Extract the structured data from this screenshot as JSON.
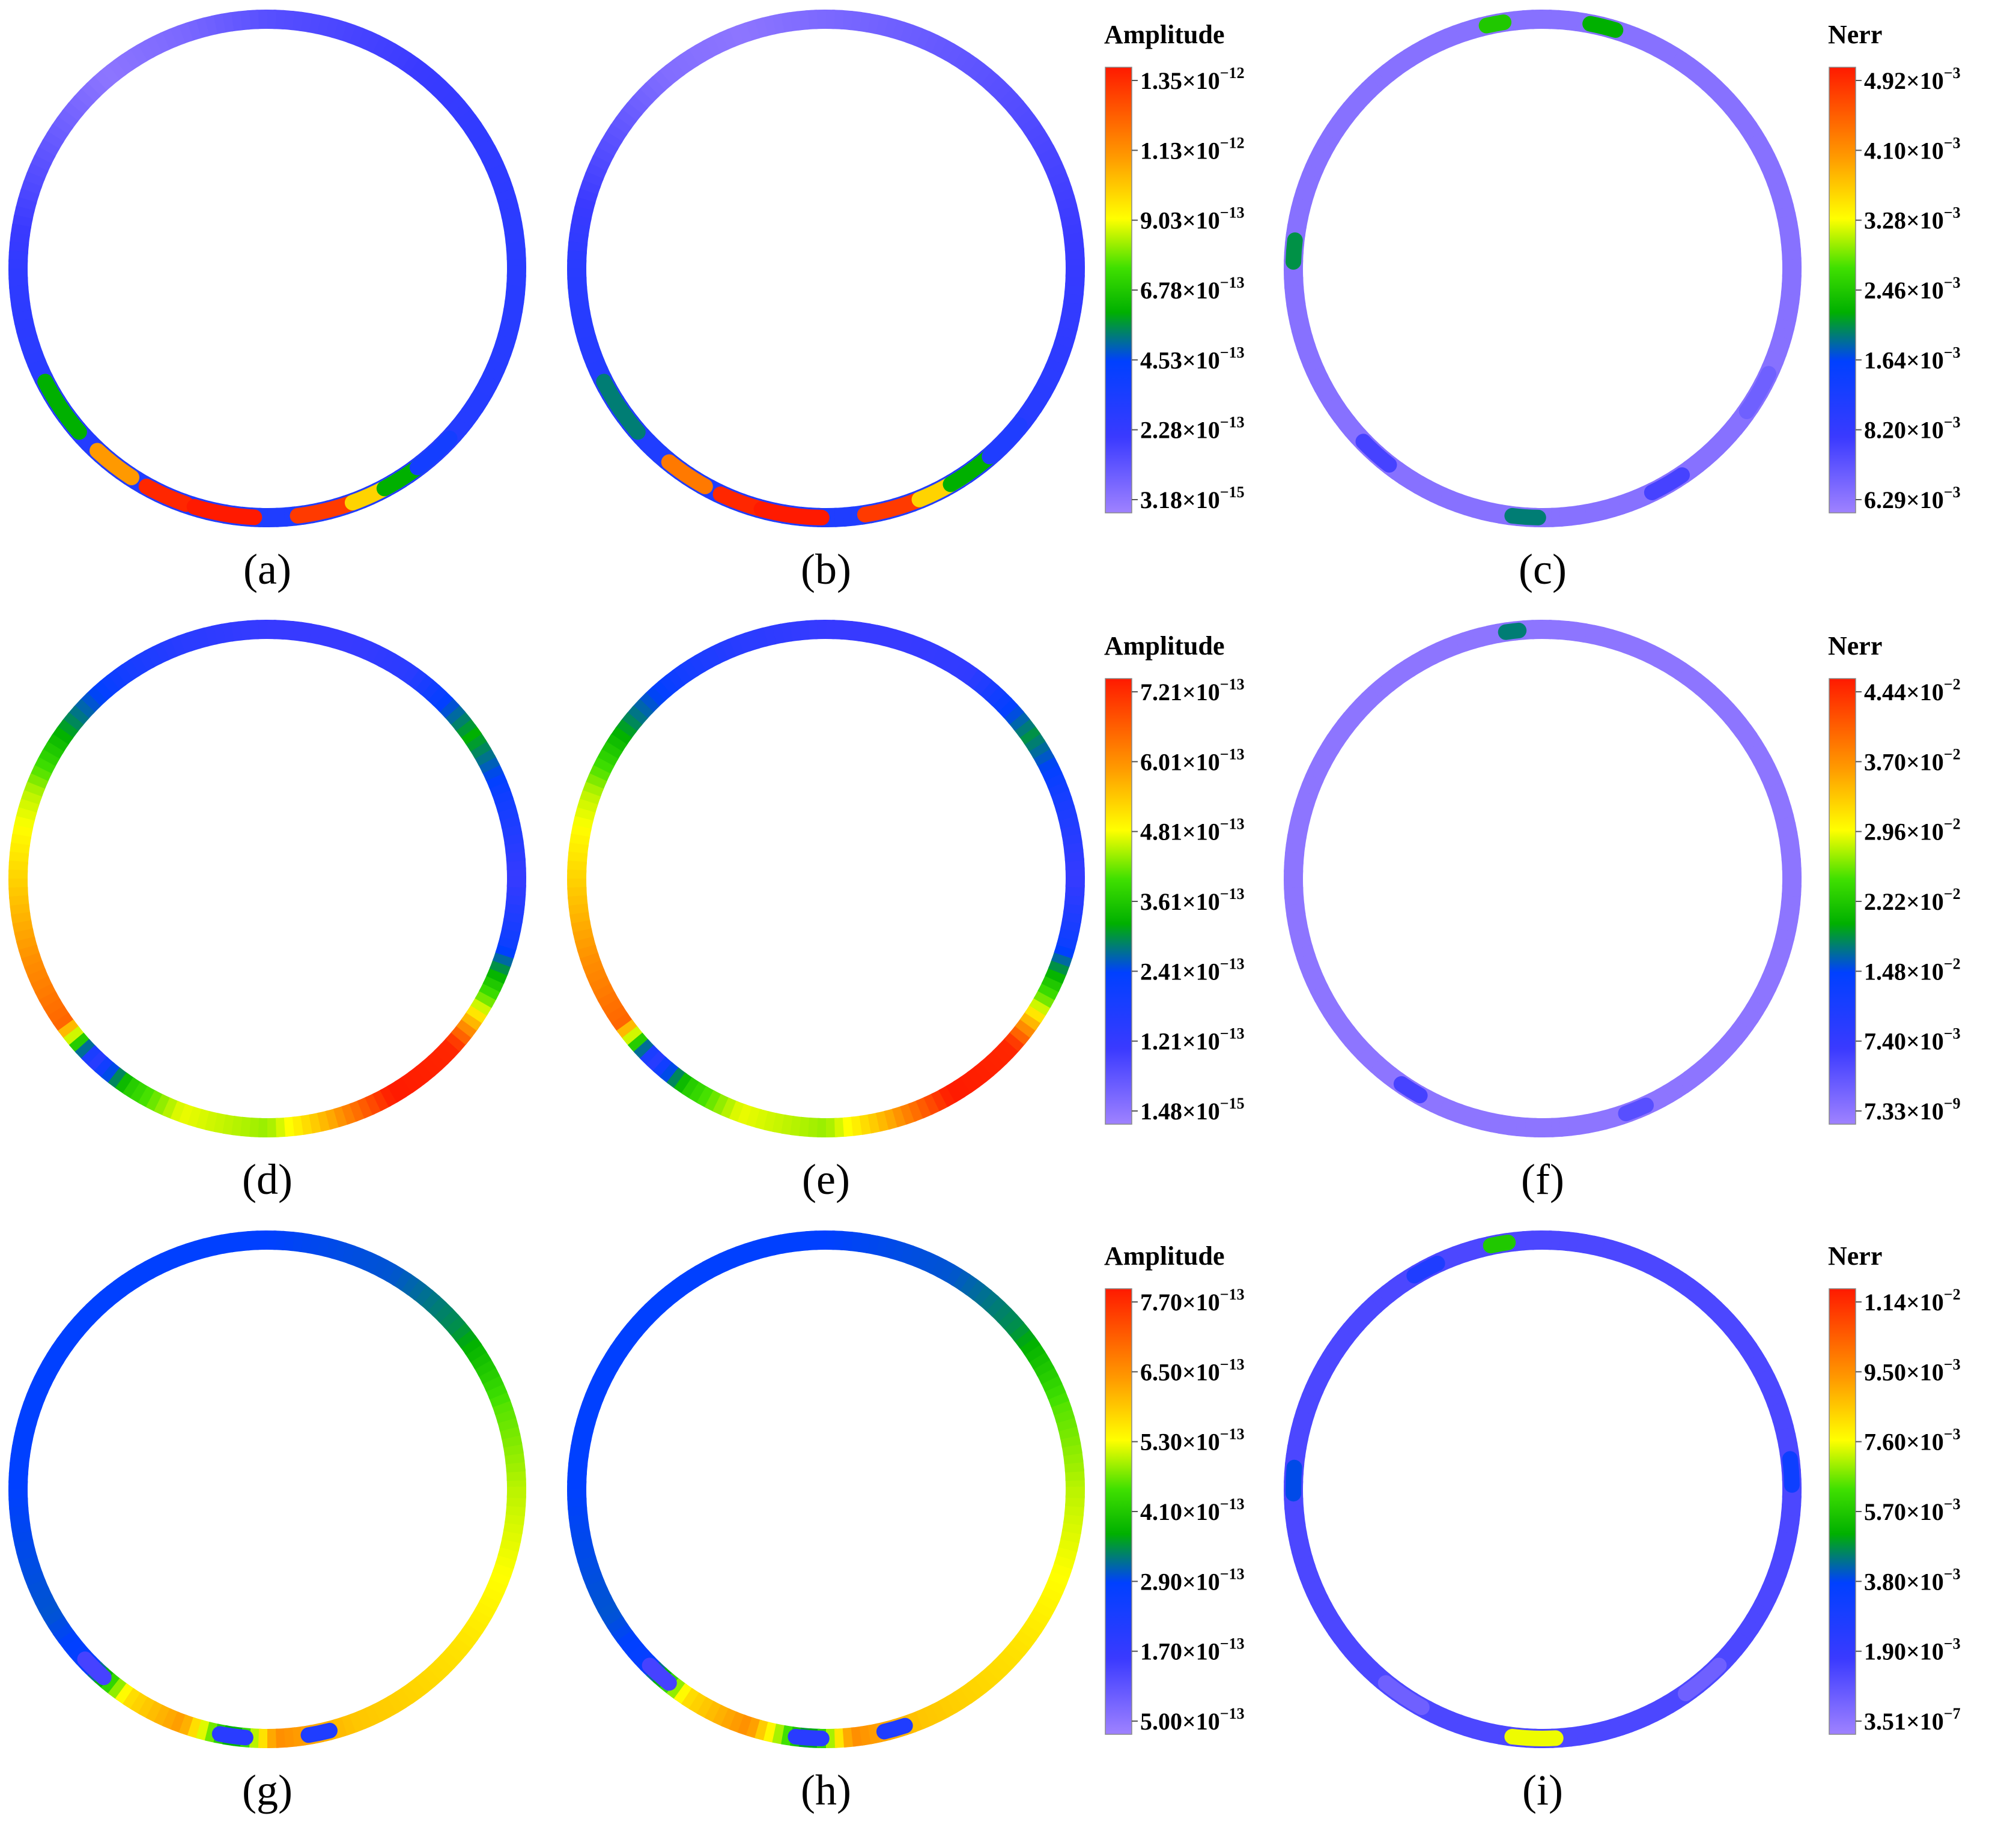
{
  "rows": [
    {
      "panels": [
        {
          "label": "(a)",
          "kind": "amplitude",
          "segments": [
            [
              0,
              0.22
            ],
            [
              30,
              0.2
            ],
            [
              60,
              0.16
            ],
            [
              90,
              0.12
            ],
            [
              110,
              0.06
            ],
            [
              130,
              0.03
            ],
            [
              180,
              0.2
            ],
            [
              230,
              0.24
            ],
            [
              270,
              0.25
            ],
            [
              300,
              0.24
            ],
            [
              330,
              0.23
            ],
            [
              360,
              0.22
            ]
          ],
          "spots": [
            [
              214,
              0.45,
              14
            ],
            [
              232,
              0.8,
              10
            ],
            [
              246,
              0.98,
              10
            ],
            [
              260,
              1.0,
              14
            ],
            [
              284,
              0.95,
              14
            ],
            [
              296,
              0.72,
              12
            ],
            [
              304,
              0.45,
              12
            ],
            [
              312,
              0.28,
              10
            ]
          ]
        },
        {
          "label": "(b)",
          "kind": "amplitude",
          "segments": [
            [
              0,
              0.18
            ],
            [
              30,
              0.14
            ],
            [
              60,
              0.1
            ],
            [
              90,
              0.06
            ],
            [
              110,
              0.03
            ],
            [
              130,
              0.05
            ],
            [
              180,
              0.22
            ],
            [
              230,
              0.25
            ],
            [
              270,
              0.25
            ],
            [
              300,
              0.24
            ],
            [
              330,
              0.22
            ],
            [
              360,
              0.18
            ]
          ],
          "spots": [
            [
              214,
              0.4,
              14
            ],
            [
              236,
              0.85,
              10
            ],
            [
              250,
              0.98,
              10
            ],
            [
              262,
              1.0,
              14
            ],
            [
              286,
              0.95,
              14
            ],
            [
              298,
              0.72,
              12
            ],
            [
              306,
              0.45,
              12
            ],
            [
              316,
              0.25,
              10
            ]
          ]
        },
        {
          "label": "(c)",
          "kind": "nerr",
          "segments": [
            [
              0,
              0.04
            ],
            [
              90,
              0.04
            ],
            [
              180,
              0.04
            ],
            [
              270,
              0.04
            ],
            [
              360,
              0.04
            ]
          ],
          "spots": [
            [
              101,
              0.5,
              4
            ],
            [
              76,
              0.45,
              6
            ],
            [
              176,
              0.42,
              5
            ],
            [
              228,
              0.15,
              8
            ],
            [
              266,
              0.4,
              6
            ],
            [
              300,
              0.15,
              8
            ],
            [
              330,
              0.08,
              10
            ]
          ]
        }
      ],
      "colorbars": [
        {
          "title": "Amplitude",
          "ticks": [
            [
              "1.35",
              "-12"
            ],
            [
              "1.13",
              "-12"
            ],
            [
              "9.03",
              "-13"
            ],
            [
              "6.78",
              "-13"
            ],
            [
              "4.53",
              "-13"
            ],
            [
              "2.28",
              "-13"
            ],
            [
              "3.18",
              "-15"
            ]
          ]
        },
        {
          "title": "Nerr",
          "ticks": [
            [
              "4.92",
              "-3"
            ],
            [
              "4.10",
              "-3"
            ],
            [
              "3.28",
              "-3"
            ],
            [
              "2.46",
              "-3"
            ],
            [
              "1.64",
              "-3"
            ],
            [
              "8.20",
              "-3"
            ],
            [
              "6.29",
              "-3"
            ]
          ]
        }
      ]
    },
    {
      "panels": [
        {
          "label": "(d)",
          "kind": "amplitude",
          "segments": [
            [
              0,
              0.18
            ],
            [
              20,
              0.3
            ],
            [
              35,
              0.45
            ],
            [
              55,
              0.22
            ],
            [
              70,
              0.18
            ],
            [
              90,
              0.18
            ],
            [
              110,
              0.22
            ],
            [
              125,
              0.28
            ],
            [
              140,
              0.4
            ],
            [
              160,
              0.62
            ],
            [
              180,
              0.72
            ],
            [
              200,
              0.82
            ],
            [
              215,
              0.88
            ],
            [
              226,
              0.2
            ],
            [
              236,
              0.5
            ],
            [
              250,
              0.65
            ],
            [
              270,
              0.6
            ],
            [
              285,
              0.78
            ],
            [
              300,
              1.0
            ],
            [
              318,
              0.98
            ],
            [
              330,
              0.6
            ],
            [
              345,
              0.3
            ],
            [
              360,
              0.18
            ]
          ],
          "spots": []
        },
        {
          "label": "(e)",
          "kind": "amplitude",
          "segments": [
            [
              0,
              0.18
            ],
            [
              20,
              0.28
            ],
            [
              35,
              0.42
            ],
            [
              55,
              0.2
            ],
            [
              70,
              0.18
            ],
            [
              90,
              0.18
            ],
            [
              110,
              0.22
            ],
            [
              125,
              0.28
            ],
            [
              140,
              0.4
            ],
            [
              160,
              0.62
            ],
            [
              180,
              0.72
            ],
            [
              200,
              0.82
            ],
            [
              215,
              0.88
            ],
            [
              226,
              0.2
            ],
            [
              236,
              0.5
            ],
            [
              250,
              0.65
            ],
            [
              270,
              0.6
            ],
            [
              285,
              0.78
            ],
            [
              300,
              1.0
            ],
            [
              318,
              0.98
            ],
            [
              330,
              0.6
            ],
            [
              345,
              0.3
            ],
            [
              360,
              0.18
            ]
          ],
          "spots": []
        },
        {
          "label": "(f)",
          "kind": "nerr",
          "segments": [
            [
              0,
              0.03
            ],
            [
              90,
              0.03
            ],
            [
              180,
              0.03
            ],
            [
              270,
              0.03
            ],
            [
              360,
              0.03
            ]
          ],
          "spots": [
            [
              97,
              0.4,
              3
            ],
            [
              238,
              0.15,
              5
            ],
            [
              292,
              0.12,
              5
            ]
          ]
        }
      ],
      "colorbars": [
        {
          "title": "Amplitude",
          "ticks": [
            [
              "7.21",
              "-13"
            ],
            [
              "6.01",
              "-13"
            ],
            [
              "4.81",
              "-13"
            ],
            [
              "3.61",
              "-13"
            ],
            [
              "2.41",
              "-13"
            ],
            [
              "1.21",
              "-13"
            ],
            [
              "1.48",
              "-15"
            ]
          ]
        },
        {
          "title": "Nerr",
          "ticks": [
            [
              "4.44",
              "-2"
            ],
            [
              "3.70",
              "-2"
            ],
            [
              "2.96",
              "-2"
            ],
            [
              "2.22",
              "-2"
            ],
            [
              "1.48",
              "-2"
            ],
            [
              "7.40",
              "-3"
            ],
            [
              "7.33",
              "-9"
            ]
          ]
        }
      ]
    },
    {
      "panels": [
        {
          "label": "(g)",
          "kind": "amplitude",
          "segments": [
            [
              0,
              0.62
            ],
            [
              20,
              0.56
            ],
            [
              40,
              0.42
            ],
            [
              60,
              0.36
            ],
            [
              90,
              0.34
            ],
            [
              120,
              0.34
            ],
            [
              150,
              0.34
            ],
            [
              180,
              0.34
            ],
            [
              210,
              0.36
            ],
            [
              225,
              0.32
            ],
            [
              236,
              0.7
            ],
            [
              250,
              0.8
            ],
            [
              262,
              0.42
            ],
            [
              272,
              0.82
            ],
            [
              290,
              0.74
            ],
            [
              305,
              0.72
            ],
            [
              320,
              0.7
            ],
            [
              340,
              0.66
            ],
            [
              360,
              0.62
            ]
          ],
          "spots": [
            [
              226,
              0.15,
              6
            ],
            [
              262,
              0.22,
              6
            ],
            [
              282,
              0.25,
              5
            ]
          ]
        },
        {
          "label": "(h)",
          "kind": "amplitude",
          "segments": [
            [
              0,
              0.62
            ],
            [
              20,
              0.56
            ],
            [
              40,
              0.42
            ],
            [
              60,
              0.36
            ],
            [
              90,
              0.34
            ],
            [
              120,
              0.34
            ],
            [
              150,
              0.34
            ],
            [
              180,
              0.34
            ],
            [
              210,
              0.36
            ],
            [
              225,
              0.32
            ],
            [
              236,
              0.7
            ],
            [
              252,
              0.82
            ],
            [
              266,
              0.4
            ],
            [
              276,
              0.82
            ],
            [
              292,
              0.74
            ],
            [
              305,
              0.72
            ],
            [
              320,
              0.7
            ],
            [
              340,
              0.66
            ],
            [
              360,
              0.62
            ]
          ],
          "spots": [
            [
              228,
              0.15,
              6
            ],
            [
              266,
              0.22,
              6
            ],
            [
              286,
              0.25,
              5
            ]
          ]
        },
        {
          "label": "(i)",
          "kind": "nerr",
          "segments": [
            [
              0,
              0.14
            ],
            [
              90,
              0.14
            ],
            [
              180,
              0.14
            ],
            [
              270,
              0.14
            ],
            [
              360,
              0.14
            ]
          ],
          "spots": [
            [
              100,
              0.5,
              4
            ],
            [
              118,
              0.25,
              6
            ],
            [
              178,
              0.35,
              6
            ],
            [
              4,
              0.3,
              6
            ],
            [
              268,
              0.65,
              10
            ],
            [
              236,
              0.08,
              10
            ],
            [
              310,
              0.08,
              10
            ]
          ]
        }
      ],
      "colorbars": [
        {
          "title": "Amplitude",
          "ticks": [
            [
              "7.70",
              "-13"
            ],
            [
              "6.50",
              "-13"
            ],
            [
              "5.30",
              "-13"
            ],
            [
              "4.10",
              "-13"
            ],
            [
              "2.90",
              "-13"
            ],
            [
              "1.70",
              "-13"
            ],
            [
              "5.00",
              "-13"
            ]
          ]
        },
        {
          "title": "Nerr",
          "ticks": [
            [
              "1.14",
              "-2"
            ],
            [
              "9.50",
              "-3"
            ],
            [
              "7.60",
              "-3"
            ],
            [
              "5.70",
              "-3"
            ],
            [
              "3.80",
              "-3"
            ],
            [
              "1.90",
              "-3"
            ],
            [
              "3.51",
              "-7"
            ]
          ]
        }
      ]
    }
  ],
  "colormap": [
    "#9f82ff",
    "#0000ff",
    "#00c000",
    "#ffff00",
    "#ff8800",
    "#ff0000"
  ],
  "times_sign": "×",
  "base": "10"
}
